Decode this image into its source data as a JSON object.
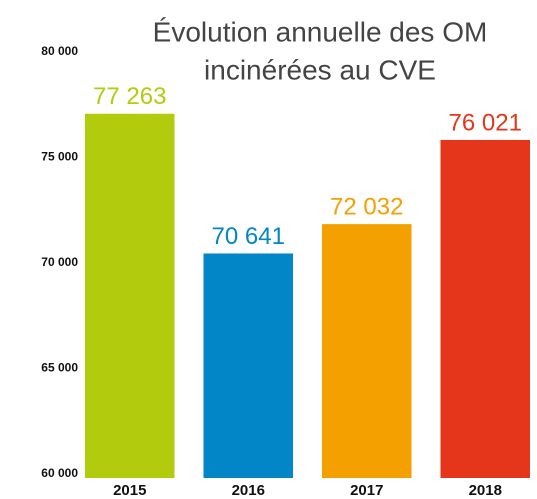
{
  "chart_data": {
    "type": "bar",
    "title": [
      "Évolution annuelle des OM",
      "incinérées au CVE"
    ],
    "categories": [
      "2015",
      "2016",
      "2017",
      "2018"
    ],
    "values": [
      77263,
      70641,
      72032,
      76021
    ],
    "value_labels": [
      "77 263",
      "70 641",
      "72 032",
      "76 021"
    ],
    "colors": [
      "#b2cb0c",
      "#0286c7",
      "#f4a000",
      "#e5361c"
    ],
    "ylim": [
      60000,
      80000
    ],
    "yticks": [
      {
        "value": 60000,
        "label": "60 000"
      },
      {
        "value": 65000,
        "label": "65 000"
      },
      {
        "value": 70000,
        "label": "70 000"
      },
      {
        "value": 75000,
        "label": "75 000"
      },
      {
        "value": 80000,
        "label": "80 000"
      }
    ],
    "grid": false
  }
}
